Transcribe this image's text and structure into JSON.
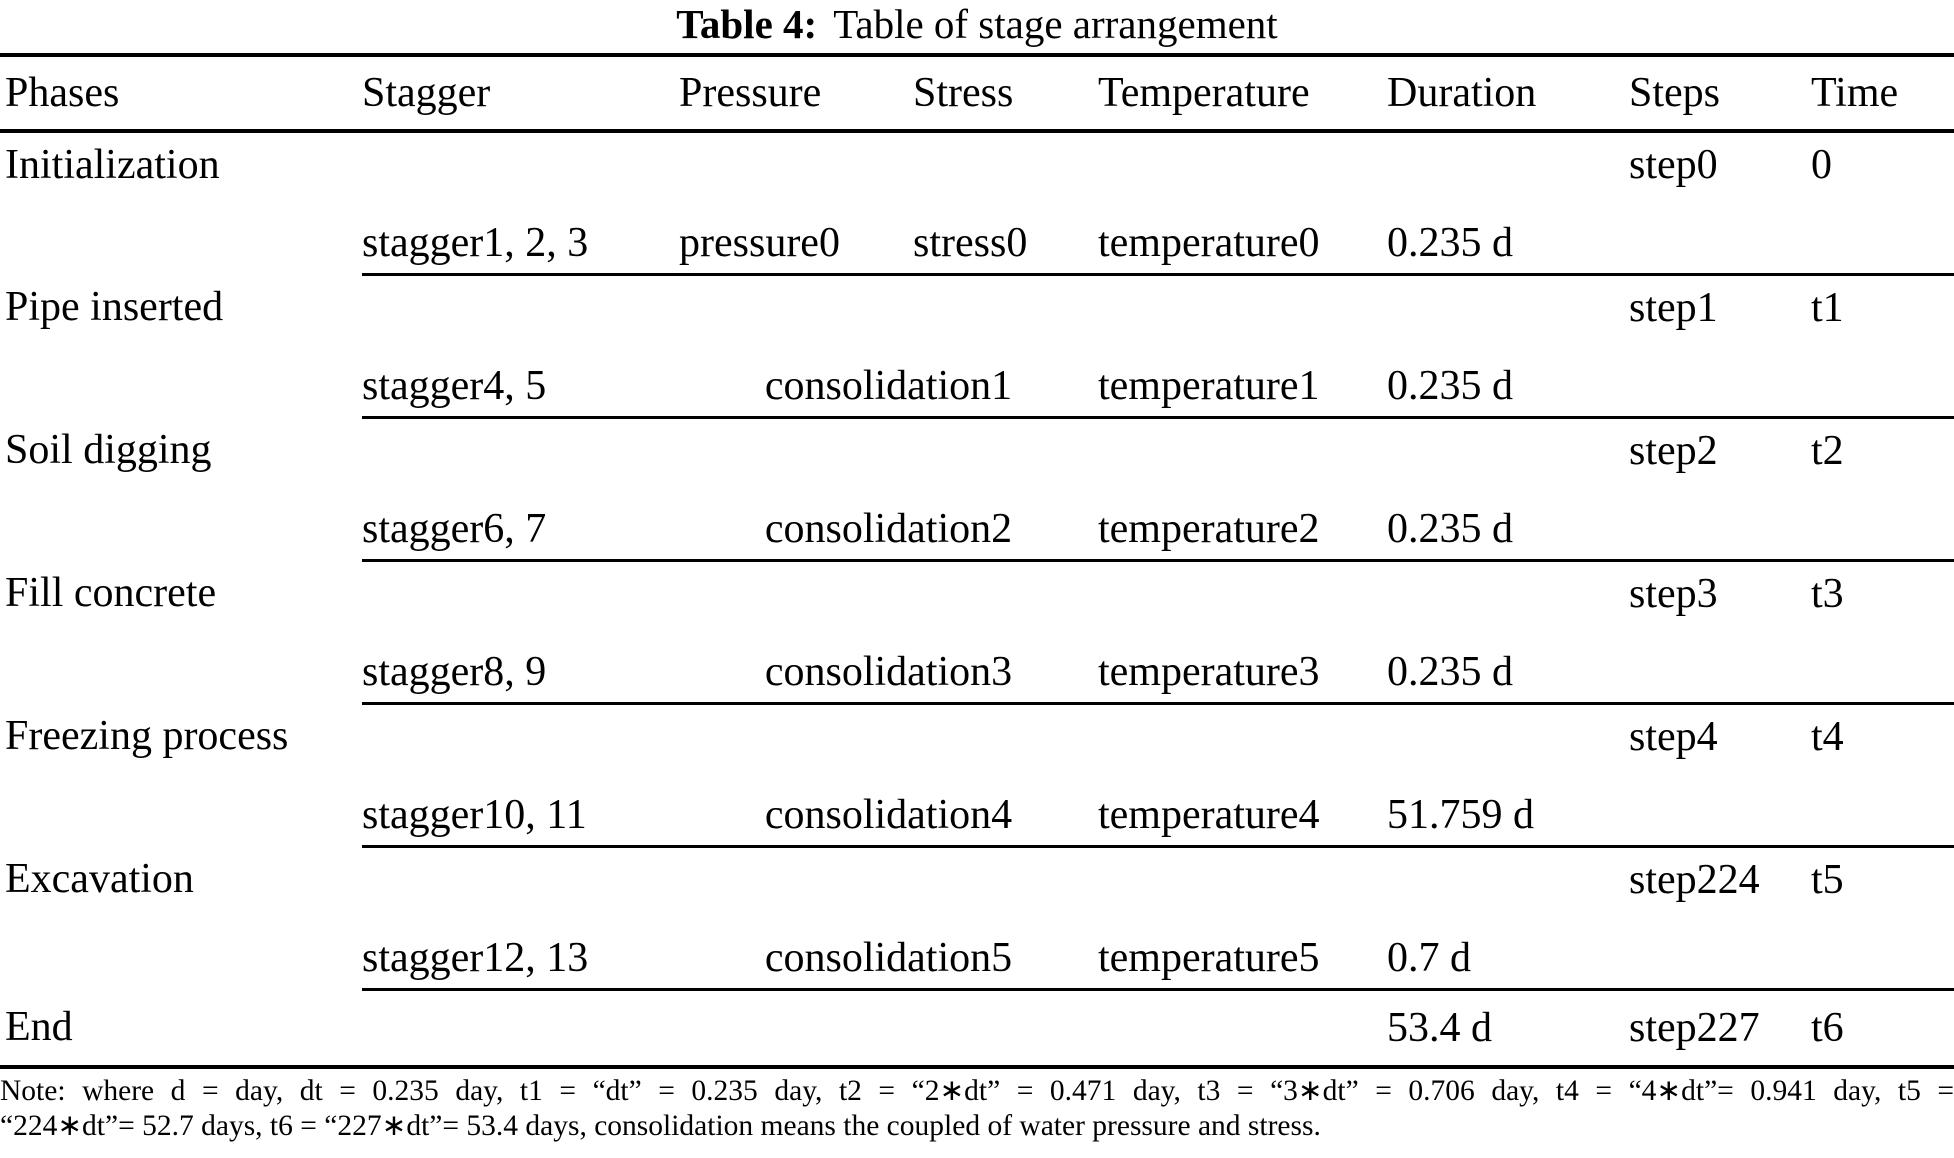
{
  "title": {
    "label": "Table 4:",
    "caption": "Table of stage arrangement"
  },
  "columns": {
    "phases": "Phases",
    "stagger": "Stagger",
    "pressure": "Pressure",
    "stress": "Stress",
    "temperature": "Temperature",
    "duration": "Duration",
    "steps": "Steps",
    "time": "Time"
  },
  "rows": [
    {
      "type": "phase",
      "phase": "Initialization",
      "steps": "step0",
      "time": "0"
    },
    {
      "type": "sub",
      "stagger": "stagger1, 2, 3",
      "pressure": "pressure0",
      "stress": "stress0",
      "temperature": "temperature0",
      "duration": "0.235 d"
    },
    {
      "type": "phase",
      "phase": "Pipe inserted",
      "steps": "step1",
      "time": "t1"
    },
    {
      "type": "sub",
      "stagger": "stagger4, 5",
      "consolidation": "consolidation1",
      "temperature": "temperature1",
      "duration": "0.235 d"
    },
    {
      "type": "phase",
      "phase": "Soil digging",
      "steps": "step2",
      "time": "t2"
    },
    {
      "type": "sub",
      "stagger": "stagger6, 7",
      "consolidation": "consolidation2",
      "temperature": "temperature2",
      "duration": "0.235 d"
    },
    {
      "type": "phase",
      "phase": "Fill concrete",
      "steps": "step3",
      "time": "t3"
    },
    {
      "type": "sub",
      "stagger": "stagger8, 9",
      "consolidation": "consolidation3",
      "temperature": "temperature3",
      "duration": "0.235 d"
    },
    {
      "type": "phase",
      "phase": "Freezing process",
      "steps": "step4",
      "time": "t4"
    },
    {
      "type": "sub",
      "stagger": "stagger10, 11",
      "consolidation": "consolidation4",
      "temperature": "temperature4",
      "duration": "51.759 d"
    },
    {
      "type": "phase",
      "phase": "Excavation",
      "steps": "step224",
      "time": "t5"
    },
    {
      "type": "sub",
      "stagger": "stagger12, 13",
      "consolidation": "consolidation5",
      "temperature": "temperature5",
      "duration": "0.7 d"
    },
    {
      "type": "end",
      "phase": "End",
      "duration": "53.4 d",
      "steps": "step227",
      "time": "t6"
    }
  ],
  "note": {
    "line1": "Note: where d = day, dt = 0.235 day, t1 =  “dt”  = 0.235 day, t2 = “2∗dt” = 0.471 day, t3 = “3∗dt” = 0.706 day, t4 = “4∗dt”= 0.941 day, t5 =",
    "line2": "“224∗dt”= 52.7 days, t6 = “227∗dt”= 53.4 days, consolidation means the coupled of water pressure and stress."
  },
  "colors": {
    "text": "#000000",
    "background": "#ffffff",
    "rule": "#000000"
  }
}
